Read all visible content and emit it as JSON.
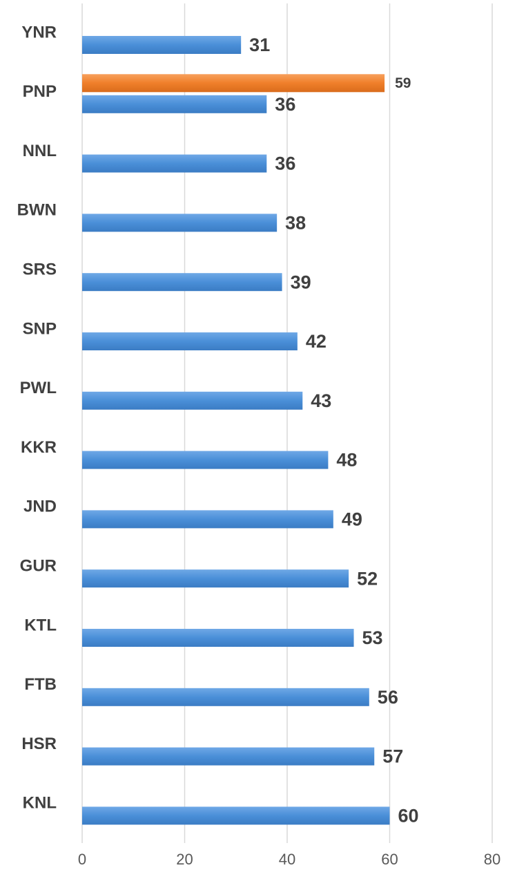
{
  "chart_data": {
    "type": "barh",
    "categories": [
      "YNR",
      "PNP",
      "NNL",
      "BWN",
      "SRS",
      "SNP",
      "PWL",
      "KKR",
      "JND",
      "GUR",
      "KTL",
      "FTB",
      "HSR",
      "KNL"
    ],
    "series": [
      {
        "color": "#4a8fd8",
        "values": [
          31,
          36,
          36,
          38,
          39,
          42,
          43,
          48,
          49,
          52,
          53,
          56,
          57,
          60
        ]
      },
      {
        "color": "#f07f2a",
        "values": [
          null,
          59,
          null,
          null,
          null,
          null,
          null,
          null,
          null,
          null,
          null,
          null,
          null,
          null
        ]
      }
    ],
    "xlim": [
      0,
      80
    ],
    "xticks": [
      0,
      20,
      40,
      60,
      80
    ],
    "grid": true
  }
}
